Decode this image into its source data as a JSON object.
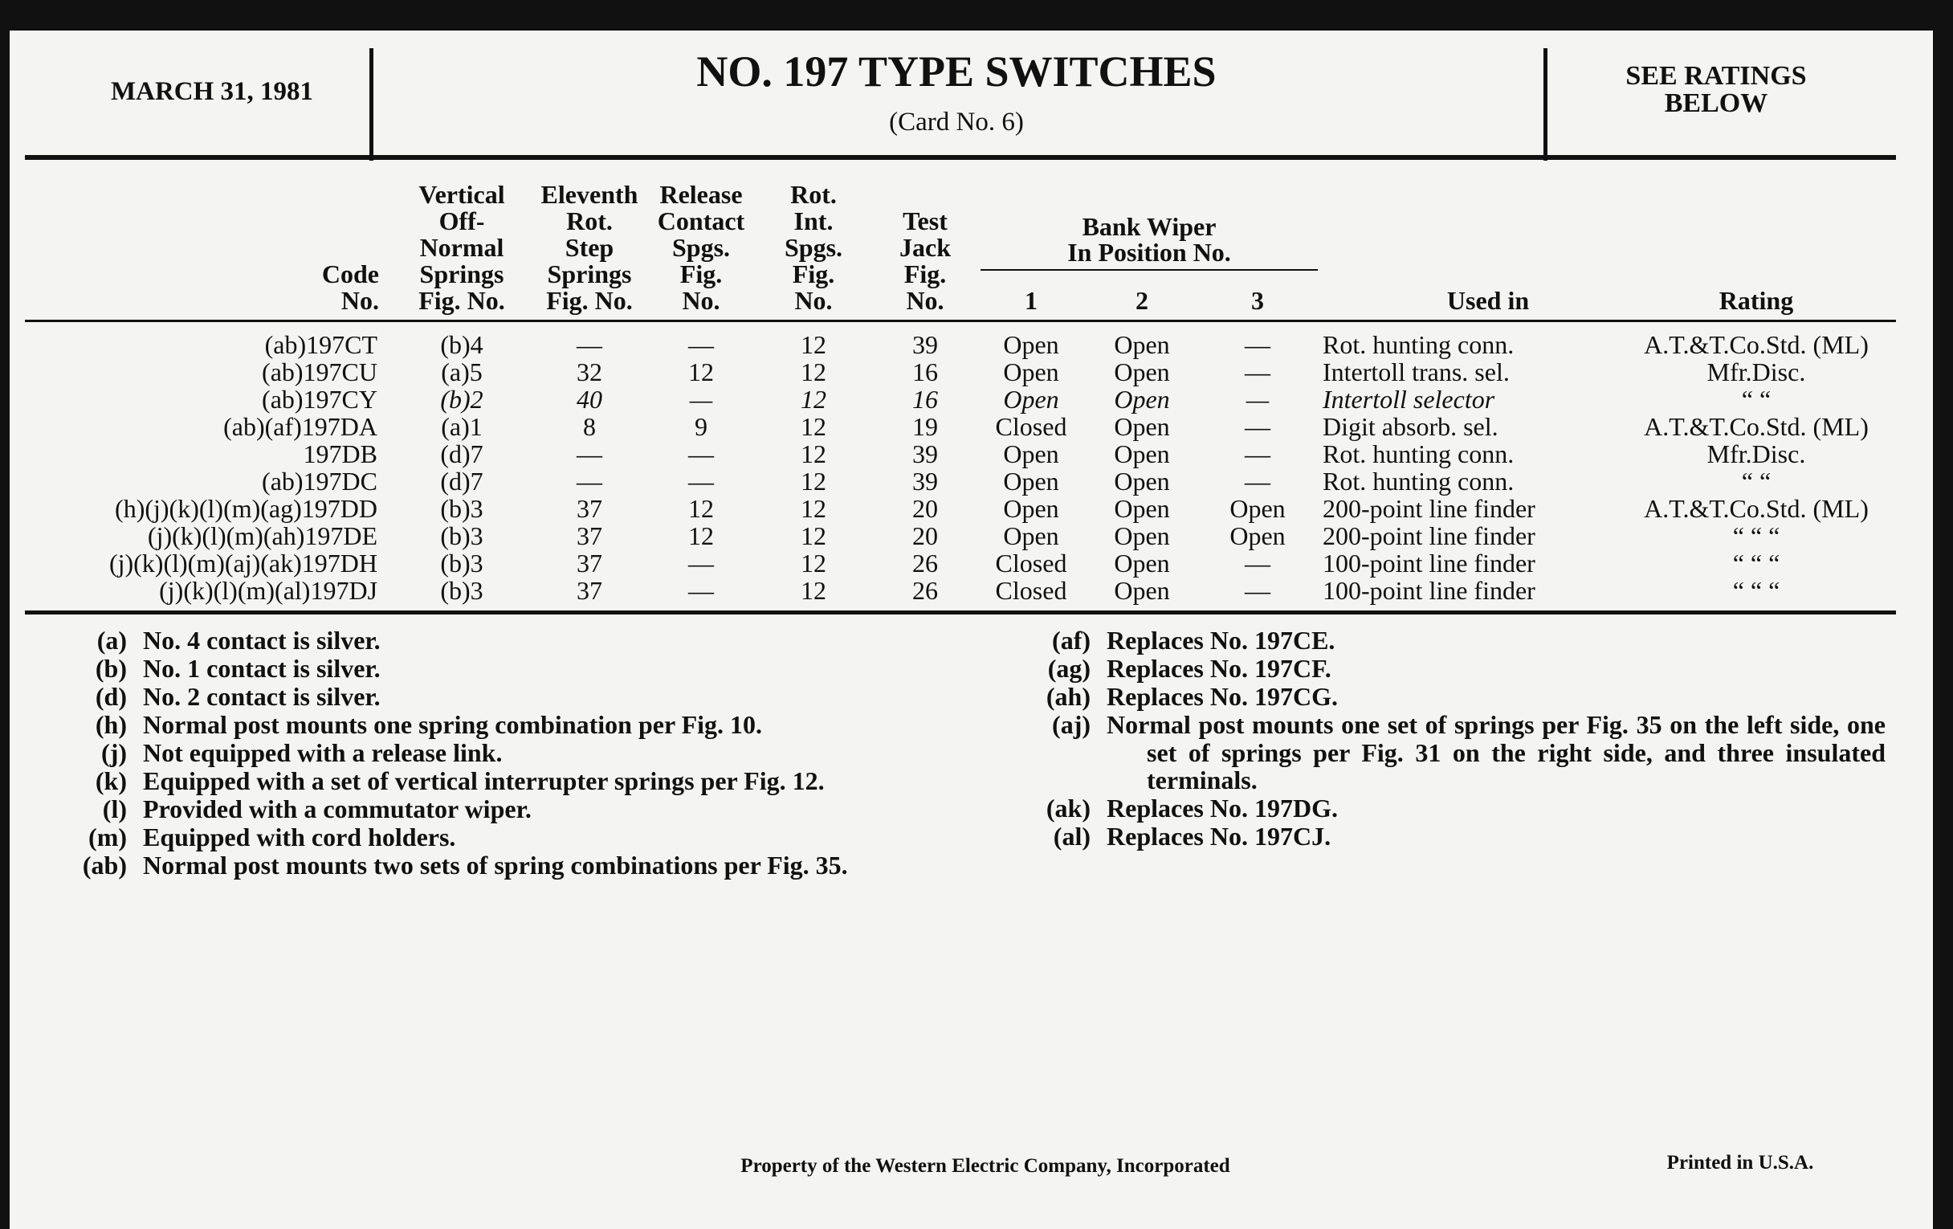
{
  "header": {
    "date": "MARCH 31, 1981",
    "title": "NO. 197 TYPE SWITCHES",
    "subtitle": "(Card No. 6)",
    "ratings_note": [
      "SEE RATINGS",
      "BELOW"
    ]
  },
  "table": {
    "columns": [
      [
        "Code",
        "No."
      ],
      [
        "Vertical",
        "Off-",
        "Normal",
        "Springs",
        "Fig. No."
      ],
      [
        "Eleventh",
        "Rot.",
        "Step",
        "Springs",
        "Fig. No."
      ],
      [
        "Release",
        "Contact",
        "Spgs.",
        "Fig.",
        "No."
      ],
      [
        "Rot.",
        "Int.",
        "Spgs.",
        "Fig.",
        "No."
      ],
      [
        "Test",
        "Jack",
        "Fig.",
        "No."
      ],
      [
        "1"
      ],
      [
        "2"
      ],
      [
        "3"
      ],
      [
        "Used in"
      ],
      [
        "Rating"
      ]
    ],
    "group_header": [
      "Bank Wiper",
      "In Position No."
    ],
    "rows": [
      [
        "(ab)197CT",
        "(b)4",
        "—",
        "—",
        "12",
        "39",
        "Open",
        "Open",
        "—",
        "Rot. hunting conn.",
        "A.T.&T.Co.Std. (ML)"
      ],
      [
        "(ab)197CU",
        "(a)5",
        "32",
        "12",
        "12",
        "16",
        "Open",
        "Open",
        "—",
        "Intertoll trans. sel.",
        "Mfr.Disc."
      ],
      [
        "(ab)197CY",
        "(b)2",
        "40",
        "—",
        "12",
        "16",
        "Open",
        "Open",
        "—",
        "Intertoll selector",
        "“   “"
      ],
      [
        "(ab)(af)197DA",
        "(a)1",
        "8",
        "9",
        "12",
        "19",
        "Closed",
        "Open",
        "—",
        "Digit absorb. sel.",
        "A.T.&T.Co.Std. (ML)"
      ],
      [
        "197DB",
        "(d)7",
        "—",
        "—",
        "12",
        "39",
        "Open",
        "Open",
        "—",
        "Rot. hunting conn.",
        "Mfr.Disc."
      ],
      [
        "(ab)197DC",
        "(d)7",
        "—",
        "—",
        "12",
        "39",
        "Open",
        "Open",
        "—",
        "Rot. hunting conn.",
        "“   “"
      ],
      [
        "(h)(j)(k)(l)(m)(ag)197DD",
        "(b)3",
        "37",
        "12",
        "12",
        "20",
        "Open",
        "Open",
        "Open",
        "200-point line finder",
        "A.T.&T.Co.Std. (ML)"
      ],
      [
        "(j)(k)(l)(m)(ah)197DE",
        "(b)3",
        "37",
        "12",
        "12",
        "20",
        "Open",
        "Open",
        "Open",
        "200-point line finder",
        "“          “          “"
      ],
      [
        "(j)(k)(l)(m)(aj)(ak)197DH",
        "(b)3",
        "37",
        "—",
        "12",
        "26",
        "Closed",
        "Open",
        "—",
        "100-point line finder",
        "“          “          “"
      ],
      [
        "(j)(k)(l)(m)(al)197DJ",
        "(b)3",
        "37",
        "—",
        "12",
        "26",
        "Closed",
        "Open",
        "—",
        "100-point line finder",
        "“          “          “"
      ]
    ]
  },
  "notes_left": [
    {
      "key": "(a)",
      "text": "No. 4 contact is silver."
    },
    {
      "key": "(b)",
      "text": "No. 1 contact is silver."
    },
    {
      "key": "(d)",
      "text": "No. 2 contact is silver."
    },
    {
      "key": "(h)",
      "text": "Normal post mounts one spring combination per Fig. 10."
    },
    {
      "key": "(j)",
      "text": "Not equipped with a release link."
    },
    {
      "key": "(k)",
      "text": "Equipped with a set of vertical interrupter springs per Fig. 12."
    },
    {
      "key": "(l)",
      "text": "Provided with a commutator wiper."
    },
    {
      "key": "(m)",
      "text": "Equipped with cord holders."
    },
    {
      "key": "(ab)",
      "text": "Normal post mounts two sets of spring combinations per Fig. 35."
    }
  ],
  "notes_right": [
    {
      "key": "(af)",
      "text": "Replaces No. 197CE."
    },
    {
      "key": "(ag)",
      "text": "Replaces No. 197CF."
    },
    {
      "key": "(ah)",
      "text": "Replaces No. 197CG."
    },
    {
      "key": "(aj)",
      "text": "Normal post mounts one set of springs per Fig. 35 on the left side, one set of springs per Fig. 31 on the right side, and three insulated terminals."
    },
    {
      "key": "(ak)",
      "text": "Replaces No. 197DG."
    },
    {
      "key": "(al)",
      "text": "Replaces No. 197CJ."
    }
  ],
  "footer": {
    "property": "Property of the Western Electric Company, Incorporated",
    "printed": "Printed in U.S.A."
  }
}
